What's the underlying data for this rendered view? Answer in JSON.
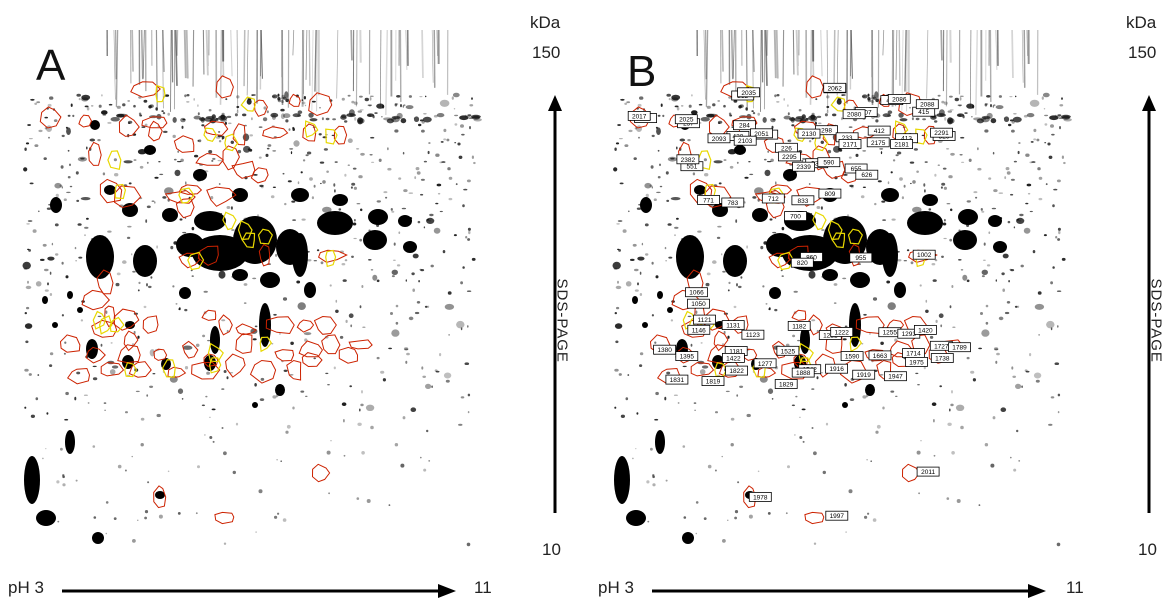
{
  "panels": [
    {
      "label": "A",
      "kda_label": "kDa",
      "kda_top": "150",
      "kda_bottom": "10",
      "sds_label": "SDS-PAGE",
      "ph_start": "pH 3",
      "ph_end": "11",
      "annotated": false
    },
    {
      "label": "B",
      "kda_label": "kDa",
      "kda_top": "150",
      "kda_bottom": "10",
      "sds_label": "SDS-PAGE",
      "ph_start": "pH 3",
      "ph_end": "11",
      "annotated": true,
      "spot_numbers": [
        "248",
        "257",
        "212",
        "284",
        "264",
        "407",
        "416",
        "415",
        "420",
        "235",
        "298",
        "233",
        "412",
        "413",
        "529",
        "226",
        "539",
        "551",
        "590",
        "655",
        "626",
        "833",
        "809",
        "771",
        "783",
        "712",
        "700",
        "860",
        "820",
        "955",
        "1002",
        "1066",
        "1050",
        "1121",
        "1131",
        "1123",
        "1146",
        "1181",
        "1182",
        "1221",
        "1222",
        "1255",
        "1293",
        "1420",
        "1380",
        "1395",
        "1422",
        "1277",
        "1525",
        "1542",
        "1590",
        "1663",
        "1714",
        "1727",
        "1738",
        "1789",
        "1831",
        "1819",
        "1822",
        "1829",
        "1888",
        "1916",
        "1919",
        "1947",
        "1975",
        "1978",
        "1997",
        "2011",
        "2017",
        "2025",
        "2035",
        "2051",
        "2062",
        "2080",
        "2086",
        "2088",
        "2093",
        "2103",
        "2130",
        "2171",
        "2175",
        "2181",
        "2291",
        "2295",
        "2339",
        "2382"
      ]
    }
  ]
}
